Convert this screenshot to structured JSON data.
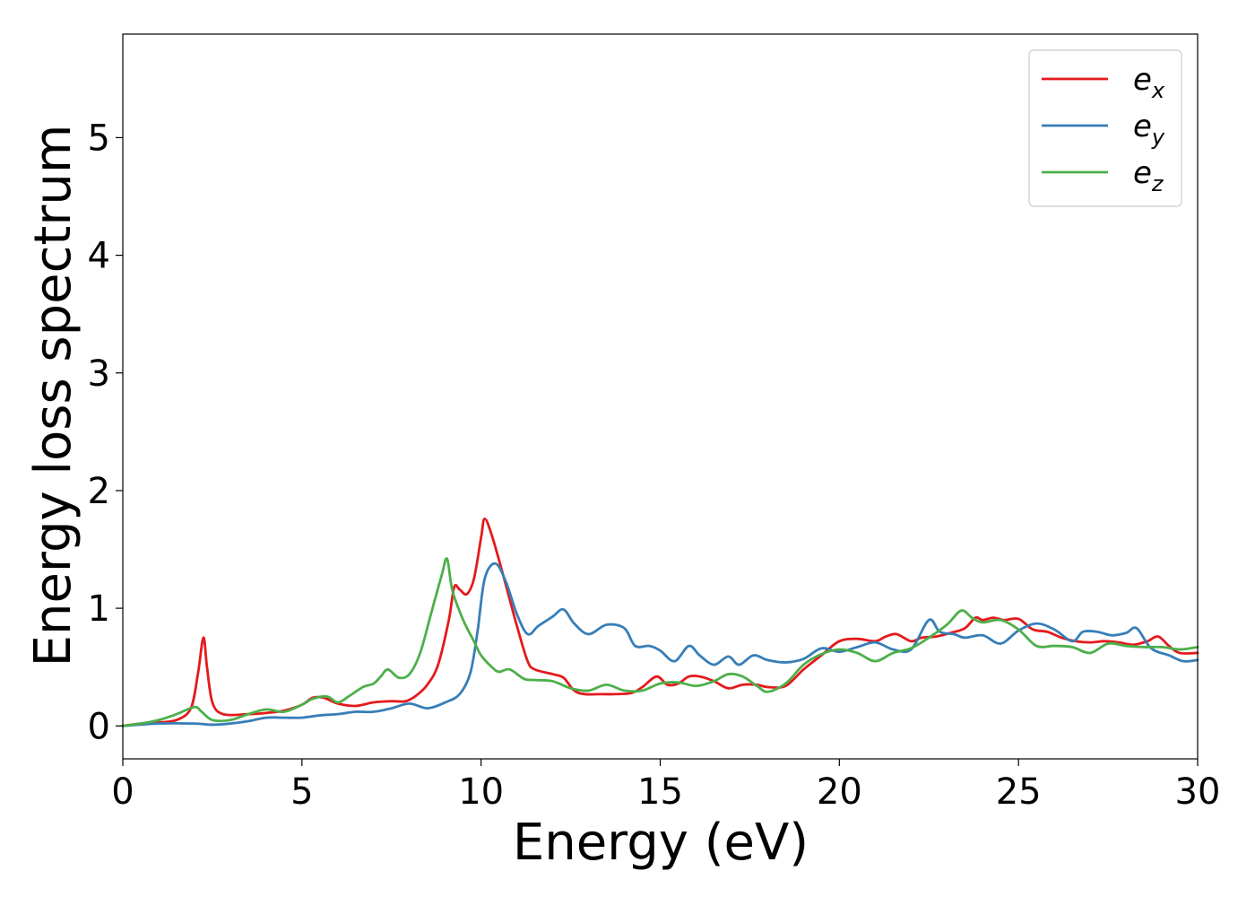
{
  "chart_data": {
    "type": "line",
    "xlabel": "Energy (eV)",
    "ylabel": "Energy loss spectrum",
    "xlim": [
      0,
      30
    ],
    "ylim": [
      -0.28,
      5.88
    ],
    "xticks": [
      0,
      5,
      10,
      15,
      20,
      25,
      30
    ],
    "yticks": [
      0,
      1,
      2,
      3,
      4,
      5
    ],
    "grid": false,
    "legend_position": "top-right",
    "series": [
      {
        "name": "e_x",
        "label_base": "e",
        "label_sub": "x",
        "color": "#e41a1c",
        "x": [
          0,
          0.5,
          1,
          1.5,
          1.9,
          2.1,
          2.25,
          2.35,
          2.5,
          2.8,
          3.5,
          4,
          4.5,
          5,
          5.3,
          5.6,
          6,
          6.5,
          7,
          7.5,
          7.9,
          8.2,
          8.5,
          8.8,
          9.1,
          9.25,
          9.4,
          9.6,
          9.8,
          10,
          10.1,
          10.3,
          10.6,
          11,
          11.3,
          11.5,
          12,
          12.3,
          12.6,
          12.9,
          13.3,
          13.7,
          14.2,
          14.5,
          14.9,
          15.2,
          15.5,
          15.8,
          16.1,
          16.5,
          16.9,
          17.3,
          17.7,
          18,
          18.5,
          19,
          19.5,
          20,
          20.5,
          21,
          21.3,
          21.6,
          22,
          22.3,
          22.7,
          23.1,
          23.5,
          23.8,
          24,
          24.3,
          24.6,
          25,
          25.4,
          25.8,
          26.2,
          26.6,
          27,
          27.4,
          27.8,
          28.2,
          28.6,
          28.9,
          29.2,
          29.5,
          30
        ],
        "values": [
          0,
          0.02,
          0.03,
          0.05,
          0.15,
          0.45,
          0.75,
          0.5,
          0.2,
          0.1,
          0.1,
          0.11,
          0.13,
          0.18,
          0.24,
          0.24,
          0.19,
          0.17,
          0.2,
          0.21,
          0.21,
          0.26,
          0.35,
          0.52,
          0.9,
          1.18,
          1.16,
          1.12,
          1.25,
          1.6,
          1.76,
          1.62,
          1.3,
          0.85,
          0.55,
          0.48,
          0.44,
          0.41,
          0.3,
          0.27,
          0.27,
          0.27,
          0.28,
          0.33,
          0.42,
          0.35,
          0.36,
          0.42,
          0.42,
          0.38,
          0.32,
          0.35,
          0.35,
          0.33,
          0.34,
          0.48,
          0.6,
          0.72,
          0.74,
          0.72,
          0.76,
          0.78,
          0.72,
          0.75,
          0.76,
          0.79,
          0.83,
          0.92,
          0.9,
          0.92,
          0.9,
          0.91,
          0.82,
          0.8,
          0.75,
          0.72,
          0.71,
          0.72,
          0.71,
          0.69,
          0.72,
          0.76,
          0.68,
          0.62,
          0.62
        ]
      },
      {
        "name": "e_y",
        "label_base": "e",
        "label_sub": "y",
        "color": "#377eb8",
        "x": [
          0,
          1,
          2,
          2.5,
          3,
          3.5,
          4,
          4.5,
          5,
          5.5,
          6,
          6.5,
          7,
          7.5,
          8,
          8.5,
          9,
          9.4,
          9.7,
          9.9,
          10.1,
          10.4,
          10.7,
          11,
          11.3,
          11.6,
          12,
          12.3,
          12.6,
          13,
          13.5,
          14,
          14.3,
          14.7,
          15,
          15.4,
          15.8,
          16.1,
          16.5,
          16.9,
          17.2,
          17.6,
          18,
          18.5,
          19,
          19.5,
          20,
          20.5,
          21,
          21.5,
          22,
          22.5,
          22.8,
          23.2,
          23.5,
          24,
          24.5,
          25,
          25.5,
          26,
          26.5,
          26.8,
          27.2,
          27.6,
          28,
          28.3,
          28.7,
          29.2,
          29.6,
          30
        ],
        "values": [
          0,
          0.02,
          0.02,
          0.01,
          0.02,
          0.04,
          0.07,
          0.07,
          0.07,
          0.09,
          0.1,
          0.12,
          0.12,
          0.15,
          0.19,
          0.15,
          0.2,
          0.27,
          0.45,
          0.8,
          1.25,
          1.38,
          1.22,
          0.95,
          0.78,
          0.85,
          0.93,
          0.99,
          0.87,
          0.78,
          0.86,
          0.83,
          0.68,
          0.68,
          0.64,
          0.55,
          0.68,
          0.6,
          0.52,
          0.59,
          0.52,
          0.6,
          0.56,
          0.54,
          0.57,
          0.66,
          0.63,
          0.67,
          0.71,
          0.65,
          0.65,
          0.9,
          0.8,
          0.78,
          0.75,
          0.77,
          0.7,
          0.81,
          0.87,
          0.82,
          0.72,
          0.8,
          0.8,
          0.77,
          0.79,
          0.83,
          0.66,
          0.6,
          0.55,
          0.56
        ]
      },
      {
        "name": "e_z",
        "label_base": "e",
        "label_sub": "z",
        "color": "#4daf4a",
        "x": [
          0,
          0.5,
          1,
          1.5,
          2,
          2.2,
          2.5,
          3,
          3.5,
          4,
          4.5,
          5,
          5.3,
          5.7,
          6,
          6.3,
          6.7,
          7,
          7.2,
          7.4,
          7.7,
          8,
          8.3,
          8.6,
          8.9,
          9.05,
          9.2,
          9.5,
          9.8,
          10,
          10.3,
          10.5,
          10.8,
          11.2,
          11.5,
          12,
          12.5,
          13,
          13.5,
          14,
          14.5,
          15,
          15.5,
          16,
          16.5,
          16.9,
          17.3,
          17.7,
          18,
          18.5,
          19,
          19.5,
          20,
          20.5,
          21,
          21.5,
          22,
          22.5,
          23,
          23.4,
          23.7,
          24,
          24.5,
          25,
          25.5,
          26,
          26.5,
          27,
          27.5,
          28,
          28.5,
          29,
          29.5,
          30
        ],
        "values": [
          0,
          0.02,
          0.05,
          0.1,
          0.16,
          0.12,
          0.05,
          0.05,
          0.1,
          0.14,
          0.12,
          0.18,
          0.23,
          0.25,
          0.2,
          0.25,
          0.33,
          0.36,
          0.42,
          0.48,
          0.41,
          0.44,
          0.62,
          0.95,
          1.28,
          1.42,
          1.15,
          0.9,
          0.72,
          0.6,
          0.5,
          0.46,
          0.48,
          0.4,
          0.39,
          0.38,
          0.32,
          0.3,
          0.35,
          0.3,
          0.3,
          0.36,
          0.37,
          0.34,
          0.38,
          0.44,
          0.42,
          0.34,
          0.29,
          0.36,
          0.52,
          0.61,
          0.65,
          0.62,
          0.55,
          0.62,
          0.66,
          0.75,
          0.86,
          0.98,
          0.92,
          0.88,
          0.9,
          0.82,
          0.68,
          0.68,
          0.67,
          0.62,
          0.7,
          0.68,
          0.67,
          0.67,
          0.65,
          0.67
        ]
      }
    ]
  }
}
